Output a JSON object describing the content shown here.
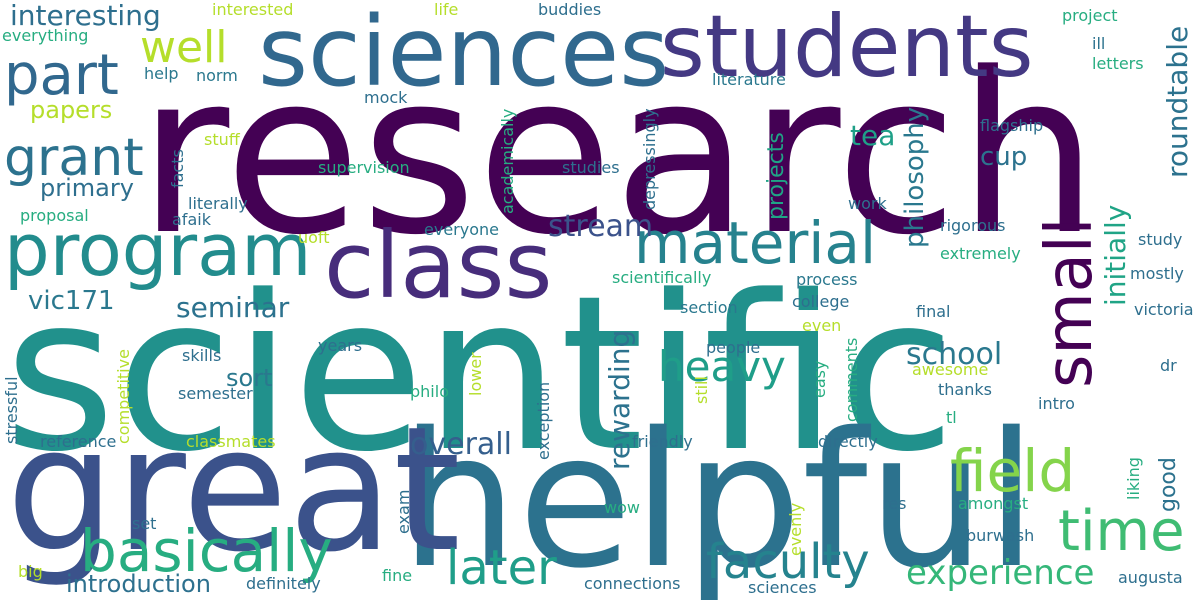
{
  "cloud": {
    "research": "research",
    "scientific": "scientific",
    "helpful": "helpful",
    "great": "great",
    "sciences": "sciences",
    "students": "students",
    "class": "class",
    "program": "program",
    "material": "material",
    "basically": "basically",
    "part": "part",
    "grant": "grant",
    "well": "well",
    "field": "field",
    "time": "time",
    "later": "later",
    "faculty": "faculty",
    "small": "small",
    "heavy": "heavy",
    "experience": "experience",
    "interesting": "interesting",
    "philosophy": "philosophy",
    "roundtable": "roundtable",
    "initially": "initially",
    "rewarding": "rewarding",
    "overall": "overall",
    "school": "school",
    "seminar": "seminar",
    "stream": "stream",
    "vic171": "vic171",
    "introduction": "introduction",
    "cup": "cup",
    "tea": "tea",
    "papers": "papers",
    "primary": "primary",
    "sort": "sort",
    "projects": "projects",
    "good": "good",
    "interested": "interested",
    "life": "life",
    "buddies": "buddies",
    "project": "project",
    "everything": "everything",
    "help": "help",
    "norm": "norm",
    "literature": "literature",
    "ill": "ill",
    "letters": "letters",
    "mock": "mock",
    "academically": "academically",
    "depressingly": "depressingly",
    "flagship": "flagship",
    "stuff": "stuff",
    "facts": "facts",
    "supervision": "supervision",
    "studies": "studies",
    "literally": "literally",
    "afaik": "afaik",
    "proposal": "proposal",
    "work": "work",
    "rigorous": "rigorous",
    "uoft": "uoft",
    "everyone": "everyone",
    "study": "study",
    "extremely": "extremely",
    "mostly": "mostly",
    "scientifically": "scientifically",
    "process": "process",
    "college": "college",
    "section": "section",
    "final": "final",
    "victoria": "victoria",
    "even": "even",
    "competitive": "competitive",
    "skills": "skills",
    "years": "years",
    "people": "people",
    "comments": "comments",
    "easy": "easy",
    "dr": "dr",
    "awesome": "awesome",
    "thanks": "thanks",
    "semester": "semester",
    "philo": "philo",
    "lower": "lower",
    "still": "still",
    "intro": "intro",
    "tl": "tl",
    "stressful": "stressful",
    "reference": "reference",
    "classmates": "classmates",
    "exception": "exception",
    "friendly": "friendly",
    "directly": "directly",
    "liking": "liking",
    "amongst": "amongst",
    "exam": "exam",
    "wow": "wow",
    "evenly": "evenly",
    "res": "res",
    "set": "set",
    "burwash": "burwash",
    "big": "big",
    "definitely": "definitely",
    "fine": "fine",
    "connections": "connections",
    "sciences_small": "sciences",
    "augusta": "augusta"
  }
}
